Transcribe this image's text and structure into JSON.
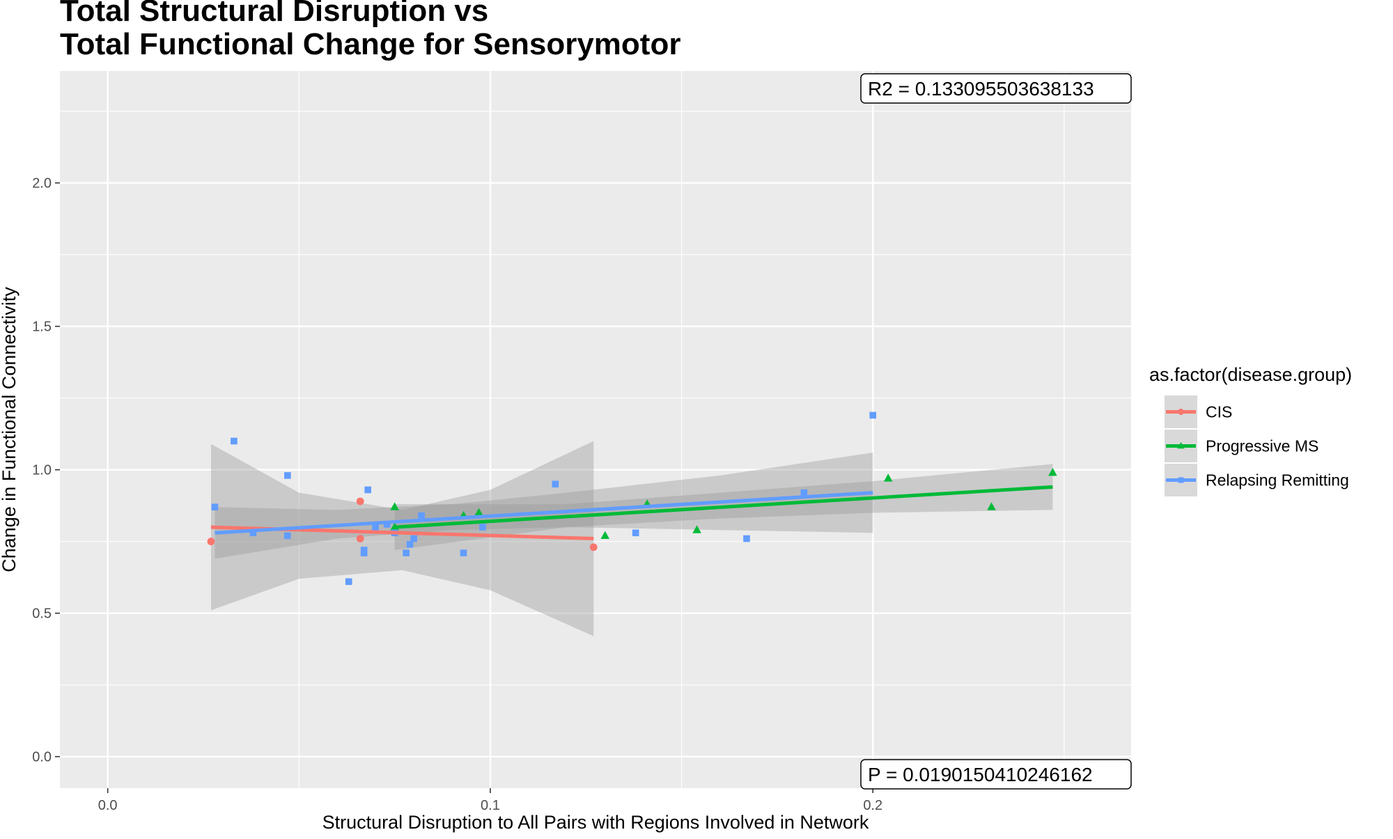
{
  "chart_data": {
    "type": "scatter",
    "title": [
      "Total Structural Disruption vs",
      "Total Functional Change for Sensorymotor"
    ],
    "xlabel": "Structural Disruption to All Pairs with Regions Involved in Network",
    "ylabel": "Change in Functional Connectivity",
    "xlim": [
      -0.0125,
      0.2675
    ],
    "ylim": [
      -0.11,
      2.39
    ],
    "x_ticks": [
      0.0,
      0.1,
      0.2
    ],
    "x_tick_labels": [
      "0.0",
      "0.1",
      "0.2"
    ],
    "y_ticks": [
      0.0,
      0.5,
      1.0,
      1.5,
      2.0
    ],
    "y_tick_labels": [
      "0.0",
      "0.5",
      "1.0",
      "1.5",
      "2.0"
    ],
    "grid": true,
    "legend": {
      "title": "as.factor(disease.group)",
      "position": "right"
    },
    "annotations": {
      "r2": "R2 =  0.133095503638133",
      "p": "P =  0.0190150410246162"
    },
    "series": [
      {
        "name": "CIS",
        "color": "#F8766D",
        "marker": "circle",
        "points": [
          [
            0.027,
            0.75
          ],
          [
            0.066,
            0.89
          ],
          [
            0.066,
            0.76
          ],
          [
            0.127,
            0.73
          ]
        ],
        "fit": {
          "x": [
            0.027,
            0.127
          ],
          "y": [
            0.8,
            0.76
          ]
        },
        "band": {
          "x": [
            0.027,
            0.05,
            0.077,
            0.1,
            0.127
          ],
          "lower": [
            0.51,
            0.62,
            0.65,
            0.58,
            0.42
          ],
          "upper": [
            1.09,
            0.92,
            0.86,
            0.93,
            1.1
          ]
        }
      },
      {
        "name": "Progressive MS",
        "color": "#00BA38",
        "marker": "triangle",
        "points": [
          [
            0.075,
            0.87
          ],
          [
            0.075,
            0.8
          ],
          [
            0.093,
            0.84
          ],
          [
            0.097,
            0.85
          ],
          [
            0.13,
            0.77
          ],
          [
            0.141,
            0.88
          ],
          [
            0.154,
            0.79
          ],
          [
            0.204,
            0.97
          ],
          [
            0.231,
            0.87
          ],
          [
            0.247,
            0.99
          ]
        ],
        "fit": {
          "x": [
            0.075,
            0.247
          ],
          "y": [
            0.8,
            0.94
          ]
        },
        "band": {
          "x": [
            0.075,
            0.12,
            0.16,
            0.2,
            0.247
          ],
          "lower": [
            0.72,
            0.8,
            0.83,
            0.85,
            0.86
          ],
          "upper": [
            0.88,
            0.88,
            0.92,
            0.96,
            1.02
          ]
        }
      },
      {
        "name": "Relapsing Remitting",
        "color": "#619CFF",
        "marker": "square",
        "points": [
          [
            0.028,
            0.87
          ],
          [
            0.033,
            1.1
          ],
          [
            0.038,
            0.78
          ],
          [
            0.047,
            0.77
          ],
          [
            0.047,
            0.98
          ],
          [
            0.063,
            0.61
          ],
          [
            0.067,
            0.72
          ],
          [
            0.067,
            0.71
          ],
          [
            0.068,
            0.93
          ],
          [
            0.07,
            0.8
          ],
          [
            0.073,
            0.81
          ],
          [
            0.075,
            0.78
          ],
          [
            0.078,
            0.71
          ],
          [
            0.079,
            0.74
          ],
          [
            0.08,
            0.76
          ],
          [
            0.082,
            0.84
          ],
          [
            0.093,
            0.71
          ],
          [
            0.098,
            0.8
          ],
          [
            0.117,
            0.95
          ],
          [
            0.138,
            0.78
          ],
          [
            0.167,
            0.76
          ],
          [
            0.182,
            0.92
          ],
          [
            0.2,
            1.19
          ]
        ],
        "fit": {
          "x": [
            0.028,
            0.2
          ],
          "y": [
            0.78,
            0.92
          ]
        },
        "band": {
          "x": [
            0.028,
            0.06,
            0.09,
            0.12,
            0.16,
            0.2
          ],
          "lower": [
            0.69,
            0.76,
            0.79,
            0.8,
            0.79,
            0.78
          ],
          "upper": [
            0.87,
            0.86,
            0.88,
            0.92,
            0.98,
            1.06
          ]
        }
      }
    ]
  }
}
